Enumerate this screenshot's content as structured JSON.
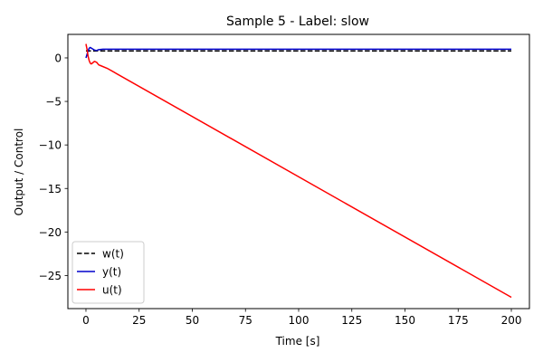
{
  "chart_data": {
    "type": "line",
    "title": "Sample 5 - Label: slow",
    "xlabel": "Time [s]",
    "ylabel": "Output / Control",
    "xlim": [
      -8.5,
      208.5
    ],
    "ylim": [
      -28.8,
      2.7
    ],
    "xticks": [
      0,
      25,
      50,
      75,
      100,
      125,
      150,
      175,
      200
    ],
    "yticks": [
      0,
      -5,
      -10,
      -15,
      -20,
      -25
    ],
    "ytick_labels": [
      "0",
      "−5",
      "−10",
      "−15",
      "−20",
      "−25"
    ],
    "grid": false,
    "legend_position": "lower-left",
    "series": [
      {
        "name": "w(t)",
        "color": "#000000",
        "dash": "dashed",
        "x": [
          0,
          200
        ],
        "y": [
          0.8,
          0.8
        ]
      },
      {
        "name": "y(t)",
        "color": "#0000cc",
        "dash": "solid",
        "x": [
          0,
          0.5,
          1,
          1.5,
          2,
          3,
          4,
          5,
          6,
          8,
          10,
          15,
          200
        ],
        "y": [
          0,
          0.4,
          0.8,
          1.1,
          1.2,
          1.05,
          0.9,
          0.85,
          0.95,
          1.0,
          1.0,
          1.0,
          1.0
        ]
      },
      {
        "name": "u(t)",
        "color": "#ff0000",
        "dash": "solid",
        "x": [
          0,
          0.5,
          1,
          1.5,
          2,
          2.5,
          3,
          4,
          5,
          6,
          7,
          10,
          200
        ],
        "y": [
          1.6,
          1.0,
          0.2,
          -0.3,
          -0.6,
          -0.7,
          -0.6,
          -0.4,
          -0.5,
          -0.8,
          -0.9,
          -1.2,
          -27.5
        ]
      }
    ]
  }
}
